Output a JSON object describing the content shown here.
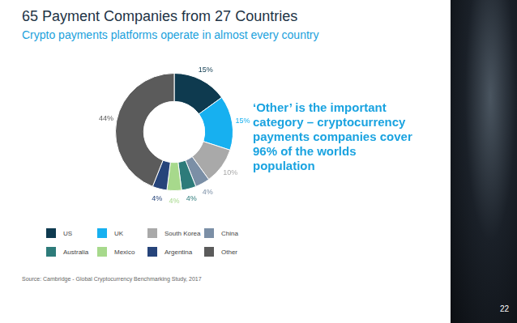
{
  "page_number": 22,
  "chart_data": {
    "type": "doughnut",
    "title": "65 Payment Companies from 27 Countries",
    "subtitle": "Crypto payments platforms operate in almost every country",
    "annotations": [
      "‘Other’ is the important category – cryptocurrency payments companies cover 96% of the worlds population"
    ],
    "source": "Source: Cambridge - Global Cryptocurrency Benchmarking Study, 2017",
    "categories": [
      "US",
      "UK",
      "South Korea",
      "China",
      "Australia",
      "Mexico",
      "Argentina",
      "Other"
    ],
    "values": [
      15,
      15,
      10,
      4,
      4,
      4,
      4,
      44
    ],
    "value_labels": [
      "15%",
      "15%",
      "10%",
      "4%",
      "4%",
      "4%",
      "4%",
      "44%"
    ],
    "colors": [
      "#0e3a4f",
      "#17b0f0",
      "#a9a9a9",
      "#7b8fa6",
      "#2d7b7a",
      "#a7d98c",
      "#26447a",
      "#5b5b5b"
    ],
    "data_labels": true,
    "legend": "bottom"
  }
}
